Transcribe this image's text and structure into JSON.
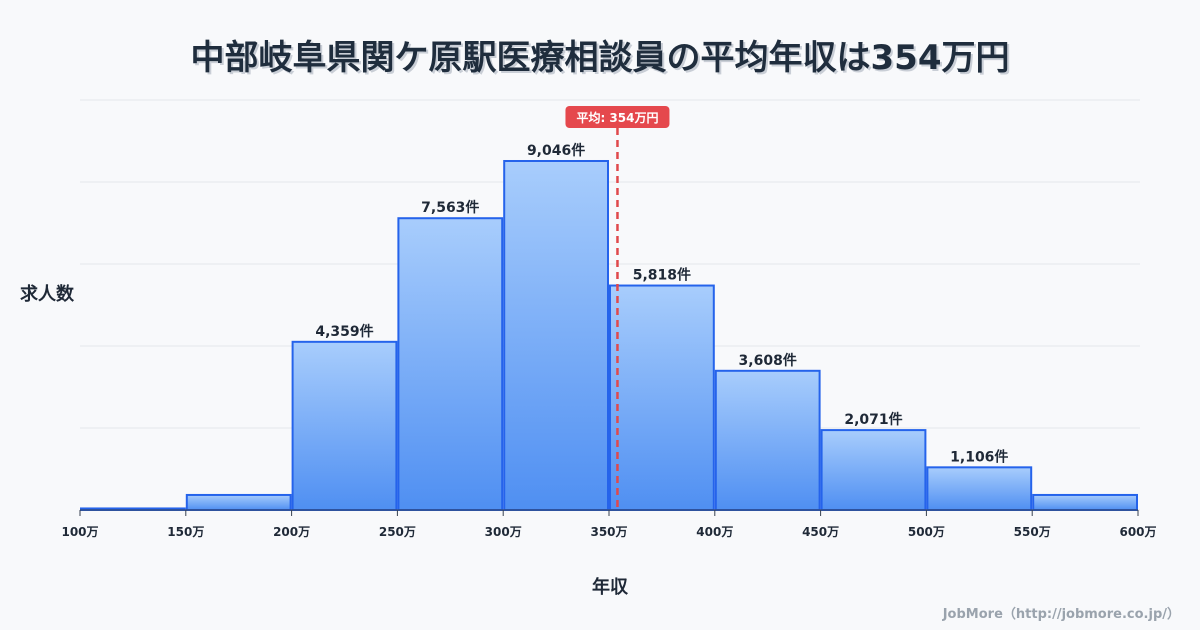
{
  "chart_data": {
    "type": "bar",
    "title": "中部岐阜県関ケ原駅医療相談員の平均年収は354万円",
    "xlabel": "年収",
    "ylabel": "求人数",
    "bin_edges": [
      100,
      150,
      200,
      250,
      300,
      350,
      400,
      450,
      500,
      550,
      600
    ],
    "tick_labels": [
      "100万",
      "150万",
      "200万",
      "250万",
      "300万",
      "350万",
      "400万",
      "450万",
      "500万",
      "550万",
      "600万"
    ],
    "values": [
      40,
      390,
      4359,
      7563,
      9046,
      5818,
      3608,
      2071,
      1106,
      390
    ],
    "data_labels": [
      "",
      "",
      "4,359件",
      "7,563件",
      "9,046件",
      "5,818件",
      "3,608件",
      "2,071件",
      "1,106件",
      ""
    ],
    "ylim": [
      0,
      10627
    ],
    "grid": true,
    "mean": {
      "value": 354,
      "label": "平均: 354万円"
    },
    "colors": {
      "bar_top": "#a8cdfc",
      "bar_bottom": "#4f8ff2",
      "bar_stroke": "#2563eb",
      "mean_line": "#e0484b",
      "mean_badge": "#e5484d"
    }
  },
  "footer": "JobMore（http://jobmore.co.jp/）"
}
